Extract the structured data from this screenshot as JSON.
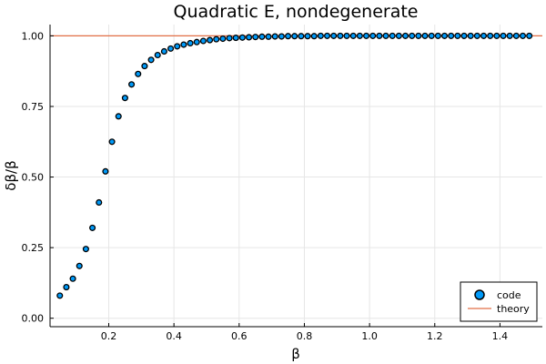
{
  "chart_data": {
    "type": "scatter",
    "title": "Quadratic E, nondegenerate",
    "xlabel": "β",
    "ylabel": "δβ/β",
    "xlim": [
      0.02,
      1.53
    ],
    "ylim": [
      -0.03,
      1.04
    ],
    "xticks": [
      0.2,
      0.4,
      0.6,
      0.8,
      1.0,
      1.2,
      1.4
    ],
    "xtick_labels": [
      "0.2",
      "0.4",
      "0.6",
      "0.8",
      "1.0",
      "1.2",
      "1.4"
    ],
    "yticks": [
      0.0,
      0.25,
      0.5,
      0.75,
      1.0
    ],
    "ytick_labels": [
      "0.00",
      "0.25",
      "0.50",
      "0.75",
      "1.00"
    ],
    "grid": true,
    "legend_position": "bottom-right",
    "series": [
      {
        "name": "code",
        "kind": "scatter",
        "color": "#009af9",
        "x": [
          0.05,
          0.07,
          0.09,
          0.11,
          0.13,
          0.15,
          0.17,
          0.19,
          0.21,
          0.23,
          0.25,
          0.27,
          0.29,
          0.31,
          0.33,
          0.35,
          0.37,
          0.39,
          0.41,
          0.43,
          0.45,
          0.47,
          0.49,
          0.51,
          0.53,
          0.55,
          0.57,
          0.59,
          0.61,
          0.63,
          0.65,
          0.67,
          0.69,
          0.71,
          0.73,
          0.75,
          0.77,
          0.79,
          0.81,
          0.83,
          0.85,
          0.87,
          0.89,
          0.91,
          0.93,
          0.95,
          0.97,
          0.99,
          1.01,
          1.03,
          1.05,
          1.07,
          1.09,
          1.11,
          1.13,
          1.15,
          1.17,
          1.19,
          1.21,
          1.23,
          1.25,
          1.27,
          1.29,
          1.31,
          1.33,
          1.35,
          1.37,
          1.39,
          1.41,
          1.43,
          1.45,
          1.47,
          1.49
        ],
        "y": [
          0.08,
          0.11,
          0.14,
          0.185,
          0.245,
          0.32,
          0.41,
          0.52,
          0.625,
          0.715,
          0.78,
          0.828,
          0.865,
          0.893,
          0.915,
          0.932,
          0.945,
          0.955,
          0.963,
          0.969,
          0.974,
          0.978,
          0.982,
          0.985,
          0.988,
          0.99,
          0.992,
          0.993,
          0.994,
          0.995,
          0.996,
          0.997,
          0.997,
          0.998,
          0.998,
          0.999,
          0.999,
          0.999,
          0.999,
          0.999,
          1.0,
          1.0,
          1.0,
          1.0,
          1.0,
          1.0,
          1.0,
          1.0,
          1.0,
          1.0,
          1.0,
          1.0,
          1.0,
          1.0,
          1.0,
          1.0,
          1.0,
          1.0,
          1.0,
          1.0,
          1.0,
          1.0,
          1.0,
          1.0,
          1.0,
          1.0,
          1.0,
          1.0,
          1.0,
          1.0,
          1.0,
          1.0,
          1.0
        ]
      },
      {
        "name": "theory",
        "kind": "line",
        "color": "#e26f46",
        "x": [
          0.02,
          1.53
        ],
        "y": [
          1.0,
          1.0
        ]
      }
    ]
  }
}
